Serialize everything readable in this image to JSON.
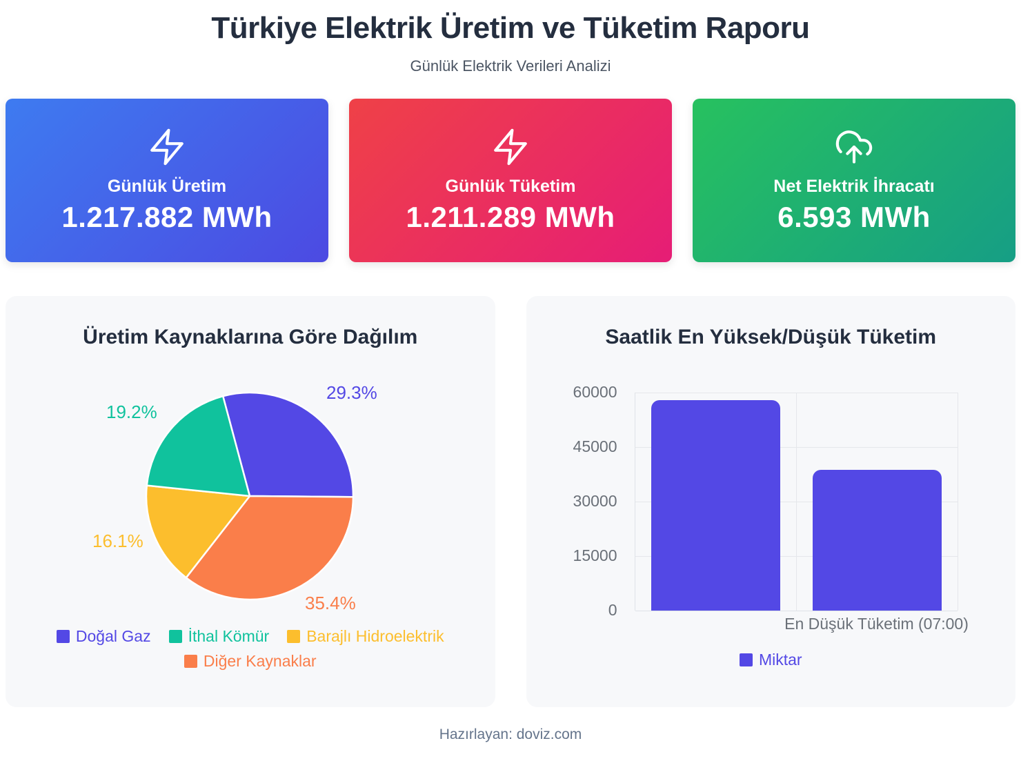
{
  "header": {
    "title": "Türkiye Elektrik Üretim ve Tüketim Raporu",
    "subtitle": "Günlük Elektrik Verileri Analizi"
  },
  "stat_cards": [
    {
      "label": "Günlük Üretim",
      "value": "1.217.882 MWh",
      "icon": "lightning-bolt-icon",
      "gradient_from": "#3e7bf0",
      "gradient_to": "#4c4ae2"
    },
    {
      "label": "Günlük Tüketim",
      "value": "1.211.289 MWh",
      "icon": "lightning-bolt-icon",
      "gradient_from": "#ef4147",
      "gradient_to": "#e61d76"
    },
    {
      "label": "Net Elektrik İhracatı",
      "value": "6.593 MWh",
      "icon": "cloud-upload-icon",
      "gradient_from": "#27c15f",
      "gradient_to": "#169e85"
    }
  ],
  "chart_data": [
    {
      "type": "pie",
      "title": "Üretim Kaynaklarına Göre Dağılım",
      "labels": [
        "Doğal Gaz",
        "İthal Kömür",
        "Barajlı Hidroelektrik",
        "Diğer Kaynaklar"
      ],
      "values_percent": [
        29.3,
        19.2,
        16.1,
        35.4
      ],
      "slice_labels": [
        "29.3%",
        "19.2%",
        "16.1%",
        "35.4%"
      ],
      "colors": [
        "#5348e5",
        "#10c29d",
        "#fcbe2d",
        "#fa7e4a"
      ],
      "start_angle_deg": -15,
      "draw_order": [
        0,
        3,
        2,
        1
      ],
      "legend_position": "bottom"
    },
    {
      "type": "bar",
      "title": "Saatlik En Yüksek/Düşük Tüketim",
      "x_labels": [
        "",
        "En Düşük Tüketim (07:00)"
      ],
      "series": [
        {
          "name": "Miktar",
          "values": [
            57900,
            38800
          ],
          "color": "#5348e5"
        }
      ],
      "ylim": [
        0,
        60000
      ],
      "yticks": [
        0,
        15000,
        30000,
        45000,
        60000
      ],
      "grid": true,
      "legend_position": "bottom"
    }
  ],
  "theme": {
    "title_text": "#242e3f",
    "subtitle_text": "#4b5563",
    "chart_card_bg": "#f7f8fa",
    "axis_text": "#6a7078",
    "gridline": "#e5e7eb",
    "footer_text": "#64748b"
  },
  "footer": {
    "text": "Hazırlayan: doviz.com"
  }
}
